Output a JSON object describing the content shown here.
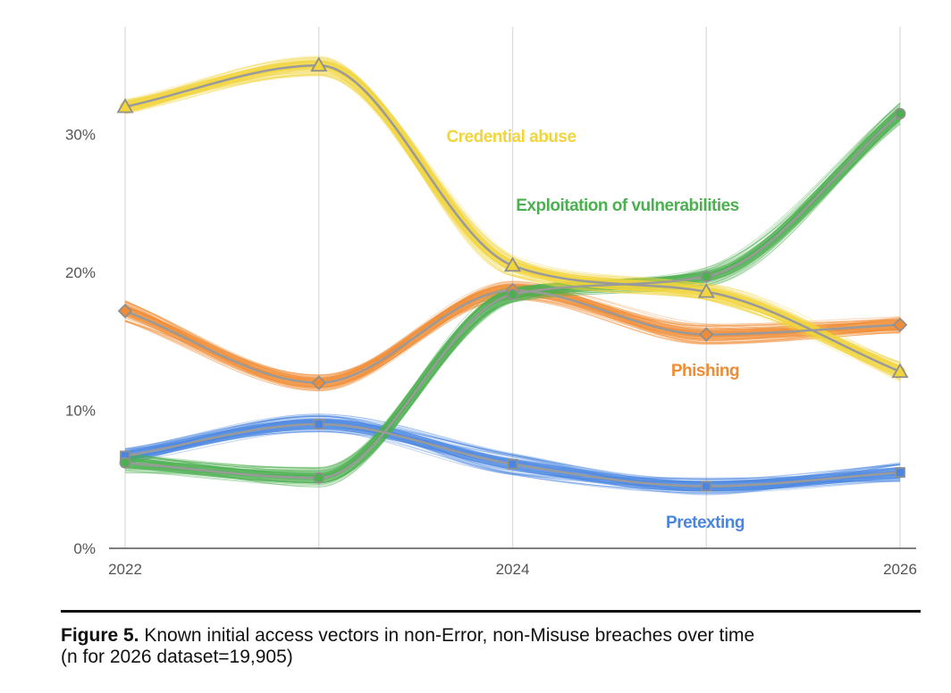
{
  "chart_data": {
    "type": "line",
    "x": [
      2022,
      2023,
      2024,
      2025,
      2026
    ],
    "x_tick_labels": [
      "2022",
      "2024",
      "2026"
    ],
    "y_tick_labels": [
      "0%",
      "10%",
      "20%",
      "30%"
    ],
    "ylim": [
      0,
      37
    ],
    "grid": "vertical",
    "series": [
      {
        "name": "Credential abuse",
        "color": "#f2d43b",
        "marker": "triangle",
        "values": [
          32.0,
          35.0,
          20.5,
          18.6,
          12.8
        ]
      },
      {
        "name": "Exploitation of vulnerabilities",
        "color": "#4caf50",
        "marker": "circle",
        "values": [
          6.2,
          5.1,
          18.4,
          19.7,
          31.5
        ]
      },
      {
        "name": "Phishing",
        "color": "#f08c35",
        "marker": "diamond",
        "values": [
          17.2,
          12.0,
          18.7,
          15.5,
          16.2
        ]
      },
      {
        "name": "Pretexting",
        "color": "#4a86e0",
        "marker": "square",
        "values": [
          6.7,
          9.0,
          6.1,
          4.5,
          5.5
        ]
      }
    ]
  },
  "caption": {
    "label": "Figure 5.",
    "text": " Known initial access vectors in non-Error, non-Misuse breaches over time",
    "text_line2": "(n for 2026 dataset=19,905)"
  }
}
